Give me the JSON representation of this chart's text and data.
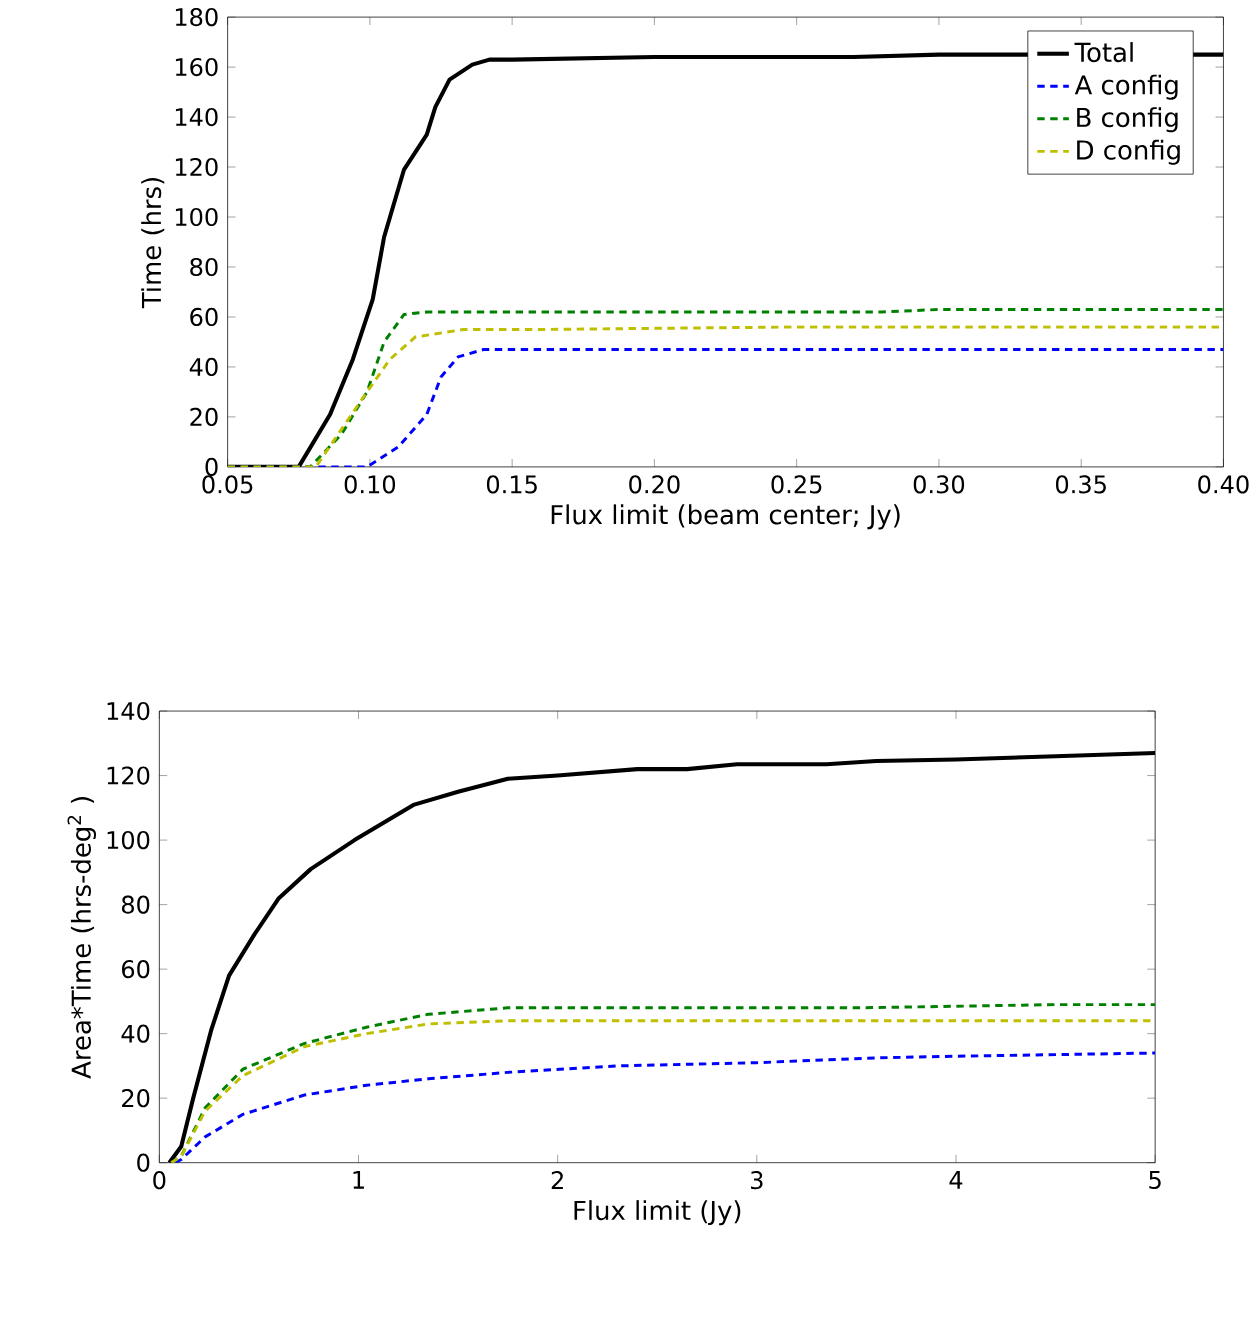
{
  "chart_data": [
    {
      "type": "line",
      "xlabel": "Flux limit (beam center; Jy)",
      "ylabel": "Time (hrs)",
      "xlim": [
        0.05,
        0.4
      ],
      "ylim": [
        0,
        180
      ],
      "xticks": [
        {
          "value": 0.05,
          "label": "0.05"
        },
        {
          "value": 0.1,
          "label": "0.10"
        },
        {
          "value": 0.15,
          "label": "0.15"
        },
        {
          "value": 0.2,
          "label": "0.20"
        },
        {
          "value": 0.25,
          "label": "0.25"
        },
        {
          "value": 0.3,
          "label": "0.30"
        },
        {
          "value": 0.35,
          "label": "0.35"
        },
        {
          "value": 0.4,
          "label": "0.40"
        }
      ],
      "yticks": [
        0,
        20,
        40,
        60,
        80,
        100,
        120,
        140,
        160,
        180
      ],
      "grid": false,
      "legend": "top right",
      "series": [
        {
          "name": "Total",
          "color": "#000000",
          "line_style": "solid",
          "x": [
            0.05,
            0.075,
            0.086,
            0.094,
            0.101,
            0.105,
            0.112,
            0.12,
            0.123,
            0.128,
            0.136,
            0.142,
            0.15,
            0.2,
            0.27,
            0.3,
            0.4
          ],
          "values": [
            0,
            0,
            21,
            43,
            67,
            92,
            119,
            133,
            144,
            155,
            161,
            163,
            163,
            164,
            164,
            165,
            165
          ]
        },
        {
          "name": "A config",
          "color": "#0000ff",
          "line_style": "dashed",
          "x": [
            0.05,
            0.099,
            0.11,
            0.12,
            0.125,
            0.131,
            0.14,
            0.2,
            0.3,
            0.4
          ],
          "values": [
            0,
            0,
            8,
            21,
            36,
            44,
            47,
            47,
            47,
            47
          ]
        },
        {
          "name": "B config",
          "color": "#008000",
          "line_style": "dashed",
          "x": [
            0.05,
            0.079,
            0.09,
            0.099,
            0.105,
            0.112,
            0.12,
            0.2,
            0.28,
            0.3,
            0.4
          ],
          "values": [
            0,
            0,
            13,
            30,
            50,
            61,
            62,
            62,
            62,
            63,
            63
          ]
        },
        {
          "name": "D config",
          "color": "#bfbf00",
          "line_style": "dashed",
          "x": [
            0.05,
            0.081,
            0.099,
            0.107,
            0.116,
            0.133,
            0.16,
            0.25,
            0.4
          ],
          "values": [
            0,
            0,
            30,
            43,
            52,
            55,
            55,
            56,
            56
          ]
        }
      ]
    },
    {
      "type": "line",
      "xlabel": "Flux limit (Jy)",
      "ylabel": "Area*Time (hrs-deg$^{2}$ )",
      "xlim": [
        0,
        5
      ],
      "ylim": [
        0,
        140
      ],
      "xticks": [
        0,
        1,
        2,
        3,
        4,
        5
      ],
      "yticks": [
        0,
        20,
        40,
        60,
        80,
        100,
        120,
        140
      ],
      "grid": false,
      "legend": false,
      "series": [
        {
          "color": "#000000",
          "line_style": "solid",
          "x": [
            0.05,
            0.11,
            0.17,
            0.26,
            0.35,
            0.48,
            0.6,
            0.76,
            0.98,
            1.28,
            1.5,
            1.75,
            2.0,
            2.4,
            2.65,
            2.9,
            3.35,
            3.6,
            4.0,
            4.5,
            5.0
          ],
          "values": [
            0,
            5,
            20,
            41,
            58,
            71,
            82,
            91,
            100,
            111,
            115,
            119,
            120,
            122,
            122,
            123.5,
            123.5,
            124.5,
            125,
            126,
            127
          ]
        },
        {
          "color": "#0000ff",
          "line_style": "dashed",
          "x": [
            0.08,
            0.11,
            0.23,
            0.42,
            0.73,
            1.04,
            1.35,
            1.75,
            2.3,
            3.0,
            3.6,
            4.0,
            5.0
          ],
          "values": [
            0,
            1,
            8,
            15,
            21,
            24,
            26,
            28,
            30,
            31,
            32.5,
            33,
            34
          ]
        },
        {
          "color": "#008000",
          "line_style": "dashed",
          "x": [
            0.06,
            0.11,
            0.23,
            0.42,
            0.73,
            1.04,
            1.35,
            1.75,
            3.5,
            4.5,
            5.0
          ],
          "values": [
            0,
            2,
            17,
            29,
            37,
            42,
            46,
            48,
            48,
            49,
            49
          ]
        },
        {
          "color": "#bfbf00",
          "line_style": "dashed",
          "x": [
            0.06,
            0.11,
            0.23,
            0.42,
            0.73,
            1.04,
            1.35,
            1.75,
            5.0
          ],
          "values": [
            0,
            2,
            16,
            27,
            36,
            40,
            43,
            44,
            44
          ]
        }
      ]
    }
  ]
}
